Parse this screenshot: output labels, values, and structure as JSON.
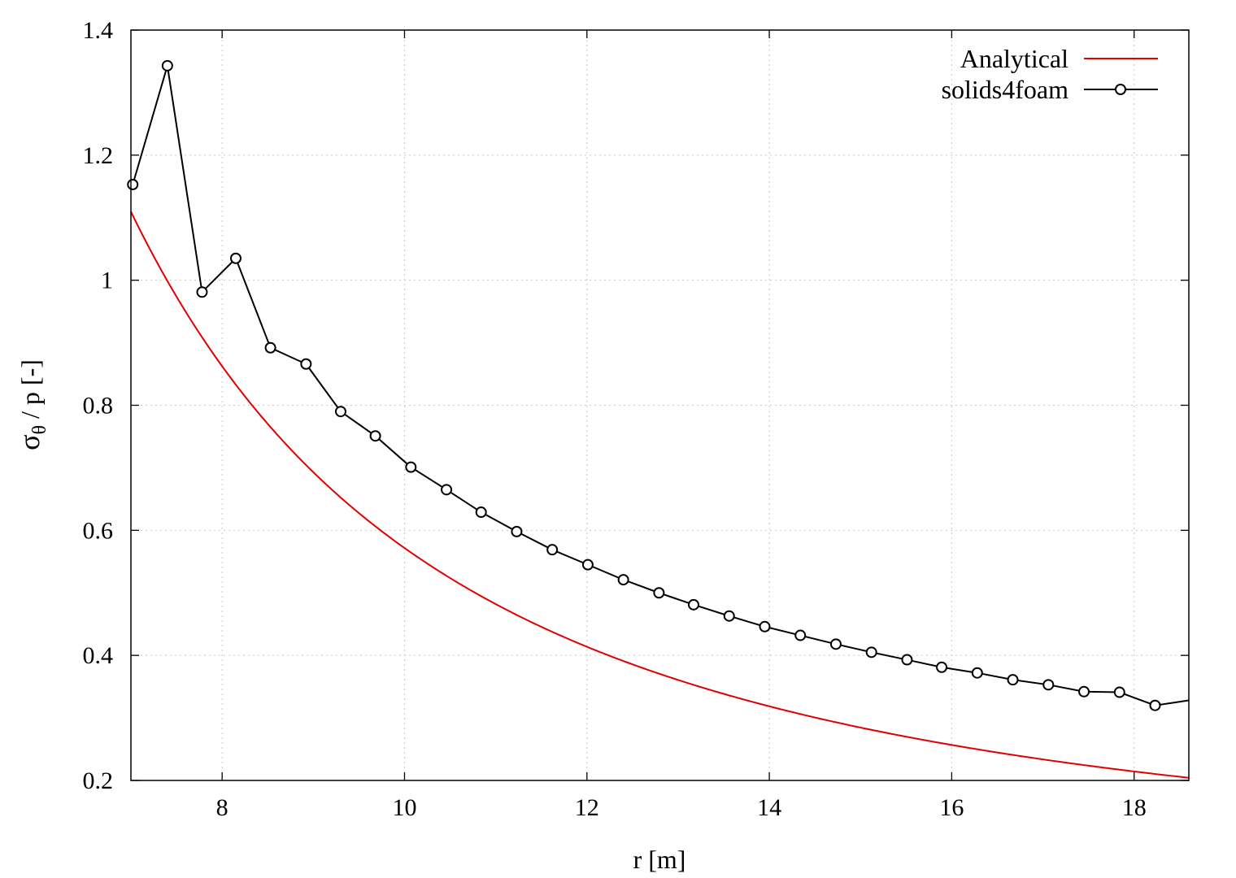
{
  "chart_data": {
    "type": "line",
    "title": "",
    "xlabel": "r [m]",
    "ylabel_main": "σ",
    "ylabel_sub": "θ",
    "ylabel_rest": " / p [-]",
    "xlim": [
      7,
      18.6
    ],
    "ylim": [
      0.2,
      1.4
    ],
    "xticks": [
      8,
      10,
      12,
      14,
      16,
      18
    ],
    "xtick_labels": [
      "8",
      "10",
      "12",
      "14",
      "16",
      "18"
    ],
    "yticks": [
      0.2,
      0.4,
      0.6,
      0.8,
      1.0,
      1.2,
      1.4
    ],
    "ytick_labels": [
      "0.2",
      "0.4",
      "0.6",
      "0.8",
      "1",
      "1.2",
      "1.4"
    ],
    "grid": true,
    "legend_position": "top-right",
    "series": [
      {
        "name": "Analytical",
        "color": "#e00000",
        "marker": "none",
        "formula": "a2(1+b2/r2)/(b2-a2)",
        "a": 7,
        "b": 30.7,
        "x_start": 7,
        "x_end": 18.6
      },
      {
        "name": "solids4foam",
        "color": "#000000",
        "marker": "circle",
        "x": [
          7.02,
          7.4,
          7.78,
          8.15,
          8.53,
          8.92,
          9.3,
          9.68,
          10.07,
          10.46,
          10.84,
          11.23,
          11.62,
          12.01,
          12.4,
          12.79,
          13.17,
          13.56,
          13.95,
          14.34,
          14.73,
          15.12,
          15.51,
          15.89,
          16.28,
          16.67,
          17.06,
          17.45,
          17.84,
          18.23
        ],
        "y": [
          1.153,
          1.343,
          0.981,
          1.035,
          0.892,
          0.866,
          0.79,
          0.751,
          0.701,
          0.665,
          0.629,
          0.598,
          0.569,
          0.545,
          0.521,
          0.5,
          0.481,
          0.463,
          0.446,
          0.432,
          0.418,
          0.405,
          0.393,
          0.381,
          0.372,
          0.361,
          0.353,
          0.342,
          0.341,
          0.32
        ],
        "x_end": 18.6,
        "y_end": 0.328
      }
    ]
  }
}
